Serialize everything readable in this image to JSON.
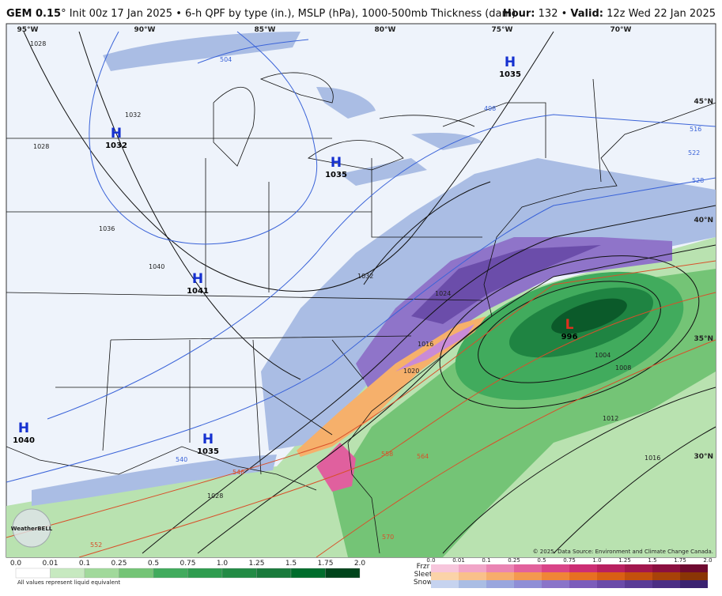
{
  "header": {
    "model": "GEM 0.15",
    "description": "° Init 00z 17 Jan 2025 • 6-h QPF by type (in.), MSLP (hPa), 1000-500mb Thickness (dam)",
    "hour_label": "Hour:",
    "hour_value": " 132 • ",
    "valid_label": "Valid:",
    "valid_value": " 12z Wed 22 Jan 2025"
  },
  "map": {
    "longitudes": [
      "95°W",
      "90°W",
      "85°W",
      "80°W",
      "75°W",
      "70°W"
    ],
    "latitudes": [
      "45°N",
      "40°N",
      "35°N",
      "30°N"
    ],
    "centers": [
      {
        "type": "H",
        "pressure": "1035"
      },
      {
        "type": "H",
        "pressure": "1032"
      },
      {
        "type": "H",
        "pressure": "1035"
      },
      {
        "type": "H",
        "pressure": "1041"
      },
      {
        "type": "H",
        "pressure": "1040"
      },
      {
        "type": "H",
        "pressure": "1035"
      },
      {
        "type": "L",
        "pressure": "996"
      }
    ],
    "isobar_labels": [
      "1028",
      "1032",
      "1028",
      "1036",
      "1040",
      "1032",
      "1024",
      "1016",
      "1020",
      "1004",
      "1008",
      "1012",
      "1016",
      "1028"
    ],
    "thickness_labels": [
      "504",
      "498",
      "516",
      "522",
      "528",
      "540",
      "546",
      "552",
      "558",
      "564",
      "570"
    ],
    "logo": "WeatherBELL",
    "credit": "© 2025. Data Source: Environment and Climate Change Canada."
  },
  "legend": {
    "rain_scale": [
      "0.0",
      "0.01",
      "0.1",
      "0.25",
      "0.5",
      "0.75",
      "1.0",
      "1.25",
      "1.5",
      "1.75",
      "2.0"
    ],
    "mixed_scale": [
      "0.0",
      "0.01",
      "0.1",
      "0.25",
      "0.5",
      "0.75",
      "1.0",
      "1.25",
      "1.5",
      "1.75",
      "2.0"
    ],
    "rows": [
      "Frzr",
      "Sleet",
      "Snow"
    ],
    "note": "All values represent liquid equivalent"
  }
}
